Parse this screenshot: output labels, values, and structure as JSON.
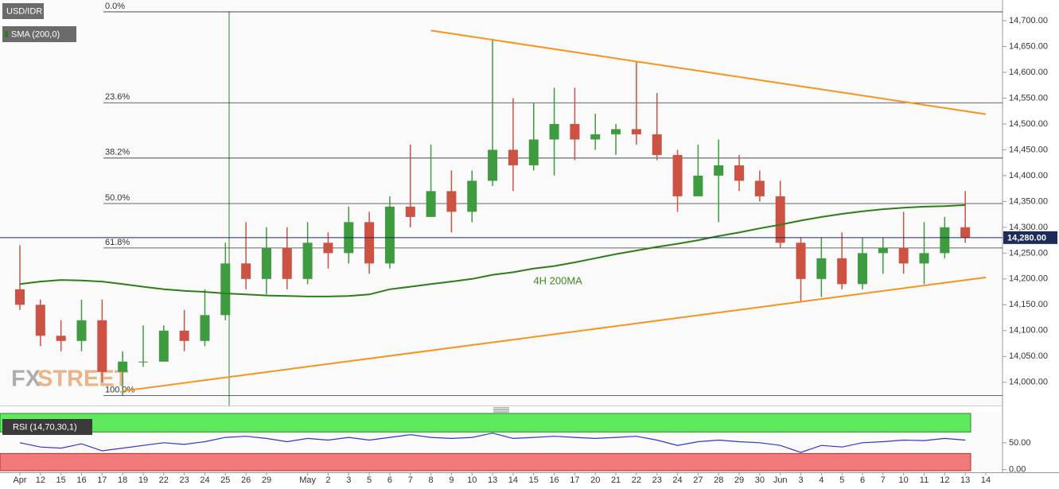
{
  "chart_data": [
    {
      "type": "candlestick",
      "title": "USD/IDR",
      "categories": [
        "Apr",
        "12",
        "15",
        "16",
        "17",
        "18",
        "19",
        "22",
        "23",
        "24",
        "25",
        "26",
        "29",
        null,
        "May",
        "2",
        "3",
        "5",
        "6",
        "7",
        "8",
        "9",
        "10",
        "13",
        "14",
        "15",
        "16",
        "17",
        "20",
        "21",
        "22",
        "23",
        "24",
        "27",
        "28",
        "29",
        "30",
        "Jun",
        "3",
        "4",
        "5",
        "6",
        "7",
        "10",
        "11",
        "12",
        "13",
        "14"
      ],
      "open": [
        14180,
        14150,
        14090,
        14080,
        14120,
        14020,
        14040,
        14040,
        14100,
        14080,
        14130,
        14230,
        14200,
        14260,
        14200,
        14270,
        14250,
        14310,
        14230,
        14340,
        14320,
        14370,
        14330,
        14390,
        14450,
        14420,
        14470,
        14500,
        14470,
        14480,
        14490,
        14480,
        14440,
        14360,
        14400,
        14420,
        14390,
        14360,
        14270,
        14200,
        14240,
        14190,
        14250,
        14260,
        14230,
        14250,
        14300,
        null
      ],
      "high": [
        14265,
        14160,
        14120,
        14160,
        14160,
        14060,
        14110,
        14110,
        14140,
        14180,
        14270,
        14310,
        14300,
        14300,
        14310,
        14290,
        14340,
        14330,
        14360,
        14460,
        14460,
        14410,
        14410,
        14665,
        14550,
        14540,
        14570,
        14570,
        14520,
        14500,
        14620,
        14560,
        14450,
        14460,
        14470,
        14440,
        14410,
        14390,
        14280,
        14280,
        14290,
        14280,
        14280,
        14330,
        14310,
        14320,
        14370,
        null
      ],
      "low": [
        14140,
        14070,
        14060,
        14060,
        14000,
        13975,
        14030,
        14040,
        14060,
        14070,
        14120,
        14180,
        14170,
        14180,
        14190,
        14220,
        14230,
        14210,
        14220,
        14300,
        14320,
        14290,
        14310,
        14380,
        14370,
        14410,
        14400,
        14430,
        14450,
        14440,
        14460,
        14430,
        14330,
        14360,
        14310,
        14370,
        14350,
        14260,
        14155,
        14165,
        14180,
        14180,
        14210,
        14210,
        14190,
        14240,
        14270,
        null
      ],
      "close": [
        14150,
        14090,
        14080,
        14120,
        14020,
        14040,
        14040,
        14100,
        14080,
        14130,
        14230,
        14200,
        14260,
        14200,
        14270,
        14250,
        14310,
        14230,
        14340,
        14320,
        14370,
        14330,
        14390,
        14450,
        14420,
        14470,
        14500,
        14470,
        14480,
        14490,
        14480,
        14440,
        14360,
        14400,
        14420,
        14390,
        14360,
        14270,
        14200,
        14240,
        14190,
        14250,
        14260,
        14230,
        14250,
        14300,
        14280,
        null
      ],
      "up_color": "#3f9b3f",
      "down_color": "#cc5243",
      "series": [
        {
          "name": "SMA (200,0)",
          "color": "#2f7d1a",
          "values": [
            14190,
            14195,
            14198,
            14197,
            14195,
            14190,
            14185,
            14180,
            14177,
            14175,
            14172,
            14170,
            14168,
            14167,
            14166,
            14166,
            14167,
            14170,
            14180,
            14185,
            14190,
            14195,
            14200,
            14208,
            14213,
            14220,
            14225,
            14232,
            14240,
            14248,
            14255,
            14262,
            14268,
            14275,
            14283,
            14290,
            14298,
            14305,
            14313,
            14320,
            14326,
            14331,
            14335,
            14338,
            14340,
            14341,
            14343,
            null
          ]
        }
      ],
      "annotation": "4H 200MA",
      "fib_levels": [
        {
          "label": "0.0%",
          "value": 14717
        },
        {
          "label": "23.6%",
          "value": 14541
        },
        {
          "label": "38.2%",
          "value": 14434
        },
        {
          "label": "50.0%",
          "value": 14346
        },
        {
          "label": "61.8%",
          "value": 14260
        },
        {
          "label": "100.0%",
          "value": 13974
        }
      ],
      "trend_lines": [
        {
          "color": "#f7931e",
          "x": [
            20,
            47
          ],
          "y": [
            14681,
            14519
          ]
        },
        {
          "color": "#f7931e",
          "x": [
            5,
            47
          ],
          "y": [
            13983,
            14203
          ]
        }
      ],
      "last_price": {
        "value": 14280,
        "label": "14,280.00"
      },
      "ylim": [
        13955,
        14740
      ],
      "yticks": [
        {
          "value": 14000,
          "label": "14,000.00"
        },
        {
          "value": 14050,
          "label": "14,050.00"
        },
        {
          "value": 14100,
          "label": "14,100.00"
        },
        {
          "value": 14150,
          "label": "14,150.00"
        },
        {
          "value": 14200,
          "label": "14,200.00"
        },
        {
          "value": 14250,
          "label": "14,250.00"
        },
        {
          "value": 14300,
          "label": "14,300.00"
        },
        {
          "value": 14350,
          "label": "14,350.00"
        },
        {
          "value": 14400,
          "label": "14,400.00"
        },
        {
          "value": 14450,
          "label": "14,450.00"
        },
        {
          "value": 14500,
          "label": "14,500.00"
        },
        {
          "value": 14550,
          "label": "14,550.00"
        },
        {
          "value": 14600,
          "label": "14,600.00"
        },
        {
          "value": 14650,
          "label": "14,650.00"
        },
        {
          "value": 14700,
          "label": "14,700.00"
        }
      ],
      "watermark": [
        "FX",
        "STREET"
      ]
    },
    {
      "type": "line",
      "title": "RSI (14,70,30,1)",
      "overbought": 70,
      "oversold": 30,
      "series": [
        {
          "name": "RSI",
          "color": "#3535c8",
          "values": [
            50,
            42,
            40,
            48,
            35,
            40,
            45,
            50,
            47,
            52,
            60,
            62,
            58,
            52,
            58,
            55,
            60,
            55,
            60,
            65,
            60,
            58,
            60,
            68,
            58,
            60,
            62,
            60,
            58,
            60,
            62,
            55,
            45,
            52,
            55,
            52,
            50,
            45,
            32,
            45,
            42,
            50,
            52,
            55,
            54,
            58,
            55,
            null
          ]
        }
      ],
      "ylim": [
        -5,
        107.5
      ],
      "yticks": [
        {
          "value": 0,
          "label": "0.00"
        },
        {
          "value": 50,
          "label": "50.00"
        }
      ]
    }
  ]
}
